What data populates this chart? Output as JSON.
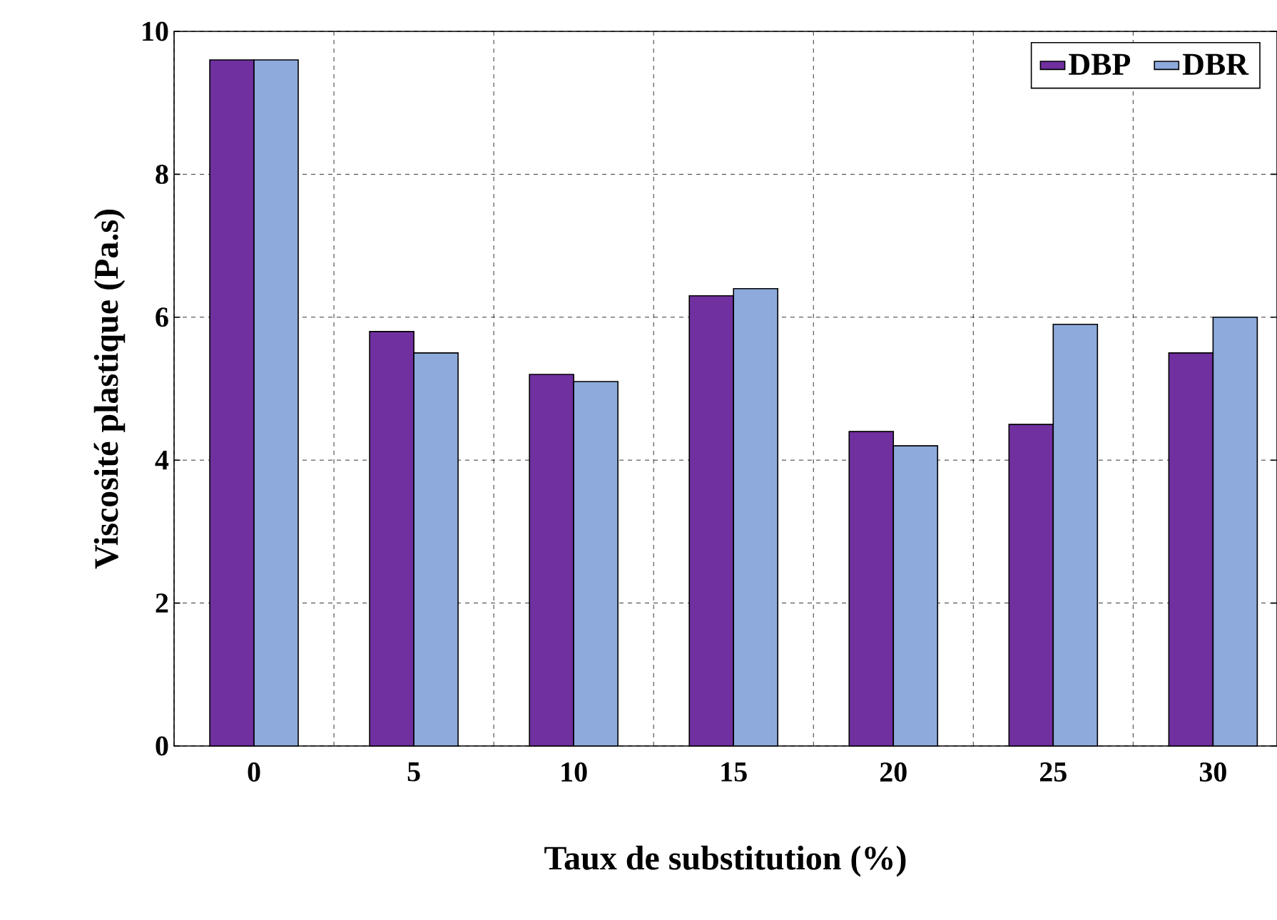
{
  "chart_data": {
    "type": "bar",
    "xlabel": "Taux de substitution (%)",
    "ylabel": "Viscosité plastique (Pa.s)",
    "categories": [
      "0",
      "5",
      "10",
      "15",
      "20",
      "25",
      "30"
    ],
    "series": [
      {
        "name": "DBP",
        "color": "#7030a0",
        "values": [
          9.6,
          5.8,
          5.2,
          6.3,
          4.4,
          4.5,
          5.5
        ]
      },
      {
        "name": "DBR",
        "color": "#8eaadc",
        "values": [
          9.6,
          5.5,
          5.1,
          6.4,
          4.2,
          5.9,
          6.0
        ]
      }
    ],
    "ylim": [
      0,
      10
    ],
    "yticks": [
      0,
      2,
      4,
      6,
      8,
      10
    ],
    "grid": true,
    "legend": "top right"
  }
}
